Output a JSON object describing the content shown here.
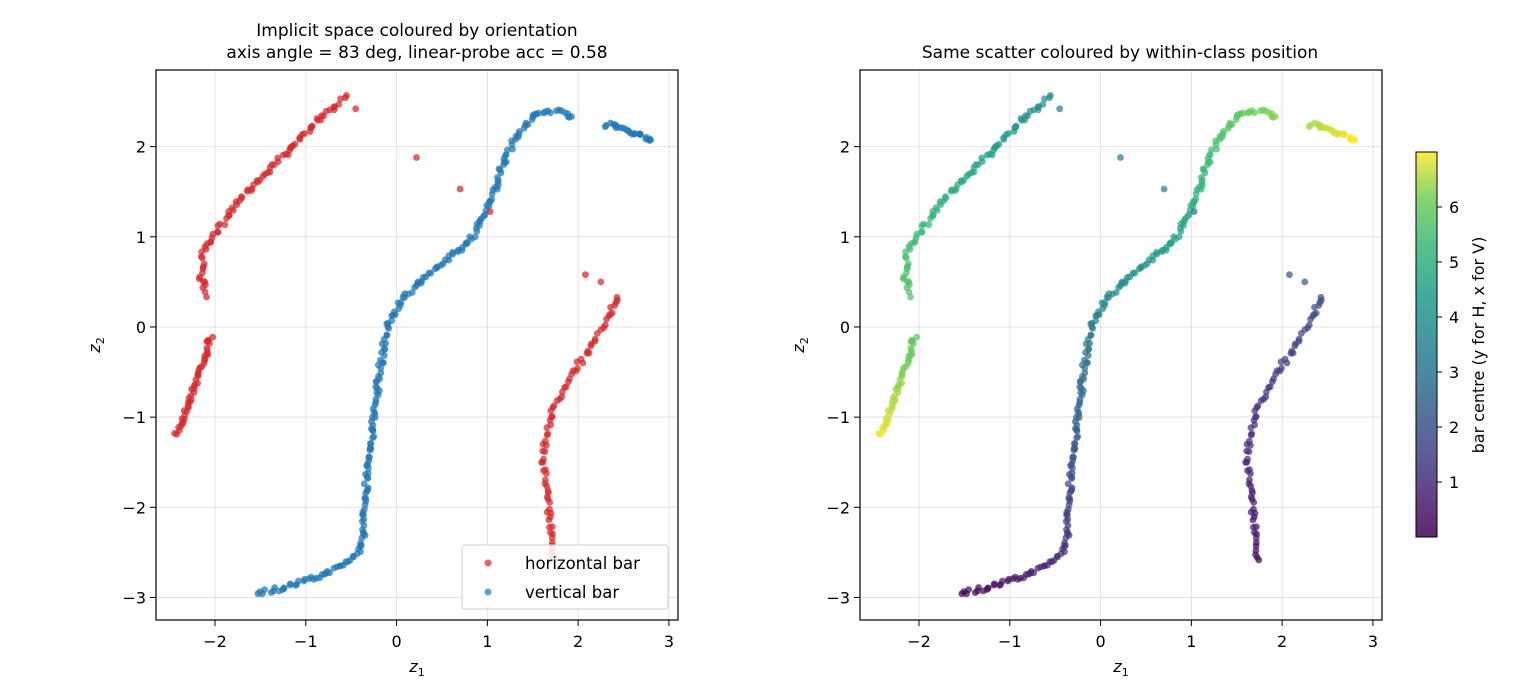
{
  "chart_data": [
    {
      "type": "scatter",
      "title_lines": [
        "Implicit space coloured by orientation",
        "axis angle = 83 deg, linear-probe acc = 0.58"
      ],
      "xlabel": "z",
      "xlabel_sub": "1",
      "ylabel": "z",
      "ylabel_sub": "2",
      "xlim": [
        -2.65,
        3.1
      ],
      "ylim": [
        -3.25,
        2.85
      ],
      "xticks": [
        -2,
        -1,
        0,
        1,
        2,
        3
      ],
      "yticks": [
        -3,
        -2,
        -1,
        0,
        1,
        2
      ],
      "xtick_labels": [
        "−2",
        "−1",
        "0",
        "1",
        "2",
        "3"
      ],
      "ytick_labels": [
        "−3",
        "−2",
        "−1",
        "0",
        "1",
        "2"
      ],
      "grid": true,
      "legend": {
        "placement": "lower-right",
        "entries": [
          "horizontal bar",
          "vertical bar"
        ]
      },
      "series": [
        {
          "name": "horizontal bar",
          "color": "#d62728",
          "key": "H"
        },
        {
          "name": "vertical bar",
          "color": "#1f77b4",
          "key": "V"
        }
      ]
    },
    {
      "type": "scatter",
      "title_lines": [
        "Same scatter coloured by within-class position"
      ],
      "xlabel": "z",
      "xlabel_sub": "1",
      "ylabel": "z",
      "ylabel_sub": "2",
      "xlim": [
        -2.65,
        3.1
      ],
      "ylim": [
        -3.25,
        2.85
      ],
      "xticks": [
        -2,
        -1,
        0,
        1,
        2,
        3
      ],
      "yticks": [
        -3,
        -2,
        -1,
        0,
        1,
        2
      ],
      "xtick_labels": [
        "−2",
        "−1",
        "0",
        "1",
        "2",
        "3"
      ],
      "ytick_labels": [
        "−3",
        "−2",
        "−1",
        "0",
        "1",
        "2"
      ],
      "grid": true,
      "colormap": "viridis",
      "colorbar": {
        "label": "bar centre (y for H, x for V)",
        "range": [
          0,
          7
        ],
        "ticks": [
          1,
          2,
          3,
          4,
          5,
          6
        ],
        "tick_labels": [
          "1",
          "2",
          "3",
          "4",
          "5",
          "6"
        ]
      }
    }
  ],
  "points": {
    "H": [
      {
        "branch": "H-upper-left",
        "path": [
          [
            -2.42,
            -1.2
          ],
          [
            -2.33,
            -0.95
          ],
          [
            -2.25,
            -0.72
          ],
          [
            -2.18,
            -0.5
          ],
          [
            -2.1,
            -0.3
          ],
          [
            -2.05,
            -0.1
          ]
        ],
        "c": [
          6.9,
          5.9
        ]
      },
      {
        "branch": "H-left-arc",
        "path": [
          [
            -2.1,
            0.35
          ],
          [
            -2.15,
            0.55
          ],
          [
            -2.13,
            0.8
          ],
          [
            -1.95,
            1.1
          ],
          [
            -1.75,
            1.4
          ],
          [
            -1.5,
            1.65
          ],
          [
            -1.2,
            1.95
          ],
          [
            -0.95,
            2.2
          ],
          [
            -0.75,
            2.4
          ],
          [
            -0.55,
            2.55
          ]
        ],
        "c": [
          5.8,
          3.8
        ]
      },
      {
        "branch": "H-right",
        "path": [
          [
            1.72,
            -2.6
          ],
          [
            1.7,
            -2.3
          ],
          [
            1.66,
            -1.9
          ],
          [
            1.62,
            -1.55
          ],
          [
            1.63,
            -1.25
          ],
          [
            1.7,
            -1.0
          ],
          [
            1.75,
            -0.85
          ],
          [
            1.9,
            -0.55
          ],
          [
            2.05,
            -0.35
          ],
          [
            2.25,
            -0.05
          ],
          [
            2.35,
            0.15
          ],
          [
            2.45,
            0.35
          ]
        ],
        "c": [
          0.3,
          1.9
        ]
      }
    ],
    "V": [
      {
        "branch": "V-main",
        "path": [
          [
            -1.52,
            -2.95
          ],
          [
            -1.2,
            -2.88
          ],
          [
            -0.9,
            -2.78
          ],
          [
            -0.6,
            -2.65
          ],
          [
            -0.42,
            -2.5
          ],
          [
            -0.36,
            -2.3
          ],
          [
            -0.35,
            -1.9
          ],
          [
            -0.32,
            -1.5
          ],
          [
            -0.26,
            -1.1
          ],
          [
            -0.2,
            -0.6
          ],
          [
            -0.15,
            -0.25
          ],
          [
            -0.1,
            0.0
          ],
          [
            0.05,
            0.3
          ],
          [
            0.2,
            0.45
          ],
          [
            0.4,
            0.62
          ],
          [
            0.6,
            0.78
          ],
          [
            0.8,
            0.95
          ],
          [
            0.95,
            1.2
          ],
          [
            1.1,
            1.55
          ],
          [
            1.2,
            1.9
          ],
          [
            1.35,
            2.15
          ],
          [
            1.52,
            2.35
          ],
          [
            1.7,
            2.4
          ],
          [
            1.85,
            2.38
          ],
          [
            1.95,
            2.33
          ]
        ],
        "c": [
          0.05,
          6.3
        ]
      },
      {
        "branch": "V-tail",
        "path": [
          [
            2.3,
            2.25
          ],
          [
            2.5,
            2.2
          ],
          [
            2.7,
            2.12
          ],
          [
            2.82,
            2.07
          ]
        ],
        "c": [
          6.5,
          7.0
        ]
      }
    ],
    "outliers": [
      {
        "x": -0.45,
        "y": 2.42,
        "c": 3.4,
        "s": "H"
      },
      {
        "x": 0.22,
        "y": 1.88,
        "c": 3.3,
        "s": "H"
      },
      {
        "x": 0.7,
        "y": 1.53,
        "c": 3.2,
        "s": "H"
      },
      {
        "x": 1.03,
        "y": 1.28,
        "c": 2.9,
        "s": "H"
      },
      {
        "x": 2.08,
        "y": 0.58,
        "c": 2.2,
        "s": "H"
      },
      {
        "x": 2.25,
        "y": 0.5,
        "c": 2.3,
        "s": "H"
      }
    ]
  }
}
